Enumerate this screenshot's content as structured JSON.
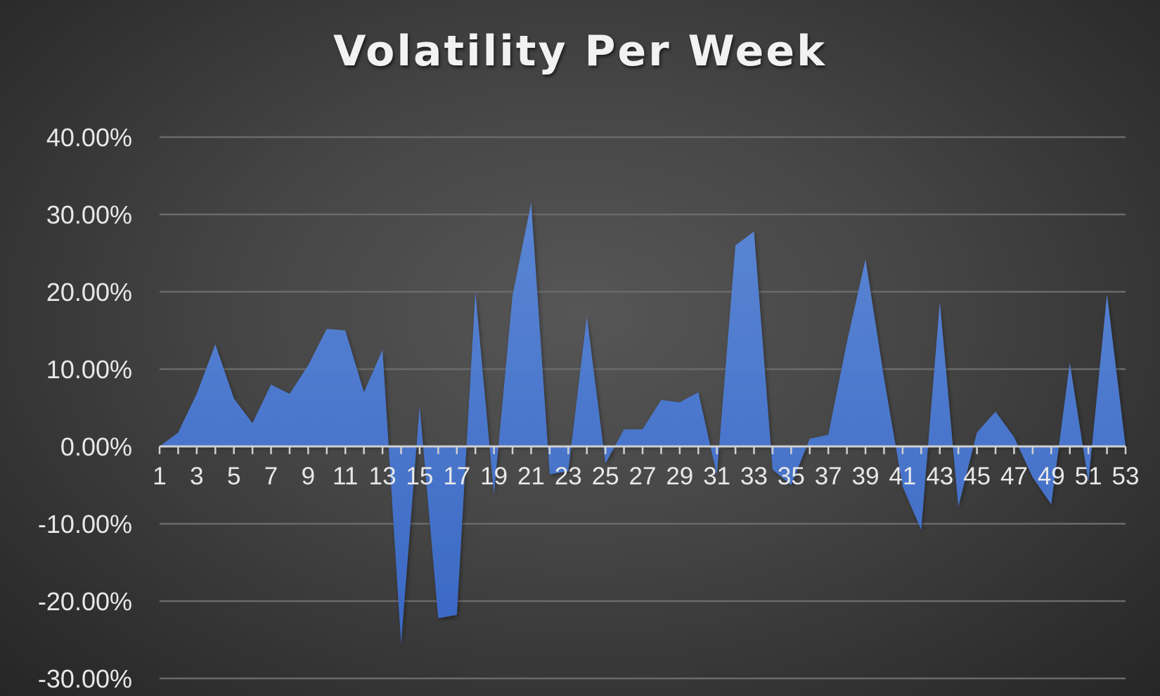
{
  "chart_data": {
    "type": "area",
    "title": "Volatility Per Week",
    "xlabel": "",
    "ylabel": "",
    "x": [
      1,
      2,
      3,
      4,
      5,
      6,
      7,
      8,
      9,
      10,
      11,
      12,
      13,
      14,
      15,
      16,
      17,
      18,
      19,
      20,
      21,
      22,
      23,
      24,
      25,
      26,
      27,
      28,
      29,
      30,
      31,
      32,
      33,
      34,
      35,
      36,
      37,
      38,
      39,
      40,
      41,
      42,
      43,
      44,
      45,
      46,
      47,
      48,
      49,
      50,
      51,
      52,
      53
    ],
    "x_tick_labels": [
      "1",
      "3",
      "5",
      "7",
      "9",
      "11",
      "13",
      "15",
      "17",
      "19",
      "21",
      "23",
      "25",
      "27",
      "29",
      "31",
      "33",
      "35",
      "37",
      "39",
      "41",
      "43",
      "45",
      "47",
      "49",
      "51",
      "53"
    ],
    "y_tick_labels": [
      "40.00%",
      "30.00%",
      "20.00%",
      "10.00%",
      "0.00%",
      "-10.00%",
      "-20.00%",
      "-30.00%"
    ],
    "y_ticks": [
      0.4,
      0.3,
      0.2,
      0.1,
      0.0,
      -0.1,
      -0.2,
      -0.3
    ],
    "ylim": [
      -0.32,
      0.4
    ],
    "grid": true,
    "legend": "none",
    "series": [
      {
        "color": "#4472C4",
        "values": [
          0.0,
          0.018,
          0.068,
          0.132,
          0.062,
          0.03,
          0.08,
          0.068,
          0.105,
          0.152,
          0.15,
          0.07,
          0.125,
          -0.255,
          0.052,
          -0.222,
          -0.218,
          0.2,
          -0.062,
          0.195,
          0.315,
          -0.036,
          -0.032,
          0.168,
          -0.022,
          0.022,
          0.022,
          0.06,
          0.057,
          0.07,
          -0.037,
          0.26,
          0.278,
          -0.03,
          -0.05,
          0.01,
          0.015,
          0.135,
          0.242,
          0.088,
          -0.052,
          -0.108,
          0.187,
          -0.078,
          0.018,
          0.045,
          0.012,
          -0.04,
          -0.075,
          0.108,
          -0.046,
          0.197,
          0.0
        ]
      }
    ],
    "colors": {
      "area_top": "#5b86d4",
      "area_bottom": "#3a68c4",
      "gridline": "#6a6a6a",
      "zero_axis": "#d0d0d0",
      "tick_label": "#e8e8e8",
      "title": "#f2f2f2"
    }
  }
}
